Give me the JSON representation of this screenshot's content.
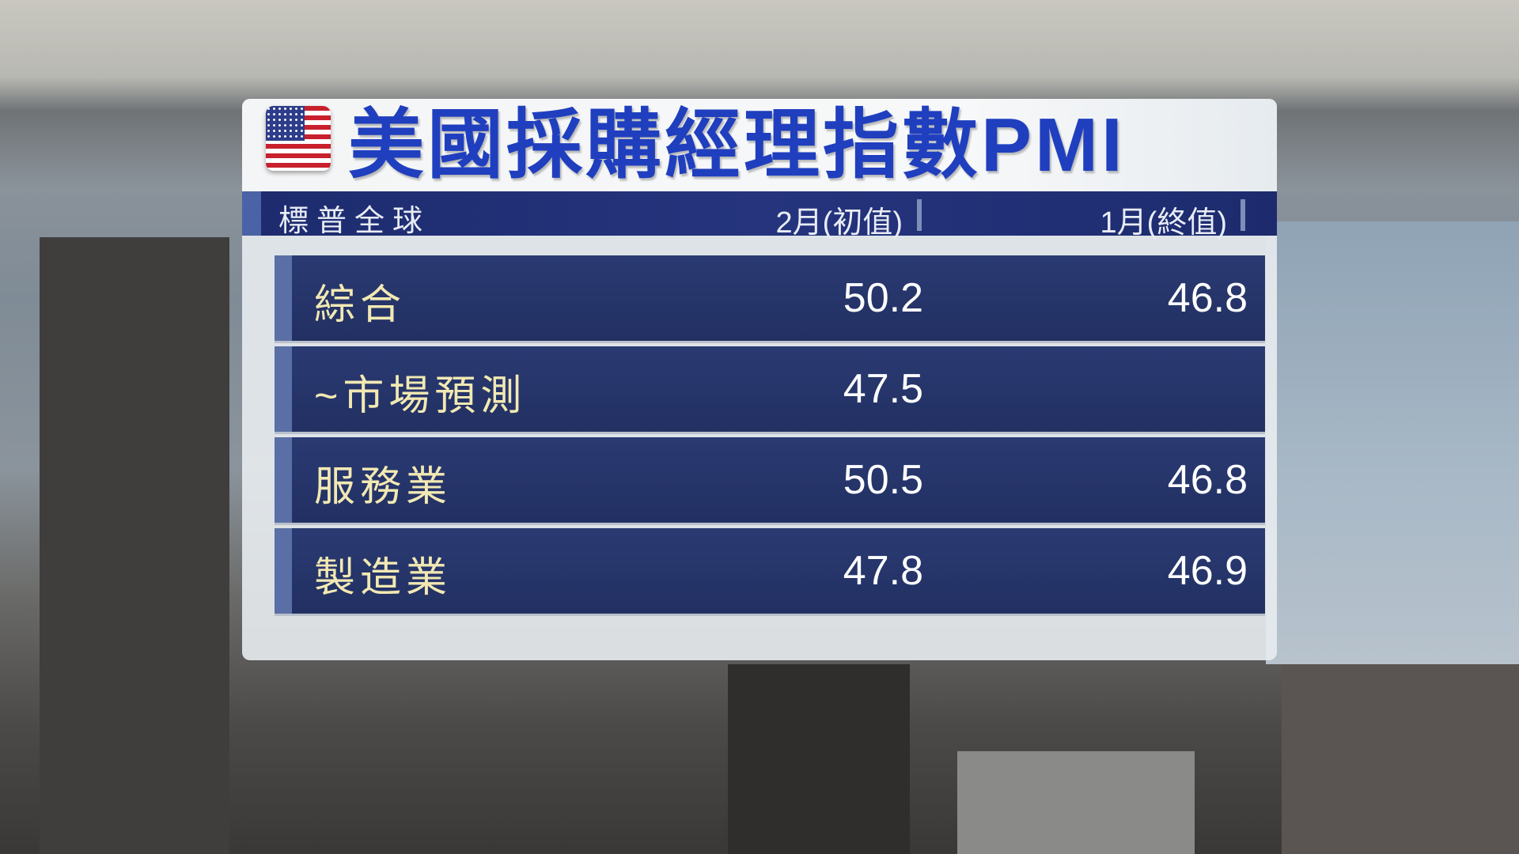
{
  "title": "美國採購經理指數PMI",
  "flag_icon": "us-flag-icon",
  "header": {
    "source": "標普全球",
    "col1": "2月(初值)",
    "col2": "1月(終值)"
  },
  "rows": [
    {
      "label": "綜合",
      "feb": "50.2",
      "jan": "46.8"
    },
    {
      "label": "~市場預測",
      "feb": "47.5",
      "jan": ""
    },
    {
      "label": "服務業",
      "feb": "50.5",
      "jan": "46.8"
    },
    {
      "label": "製造業",
      "feb": "47.8",
      "jan": "46.9"
    }
  ],
  "colors": {
    "title": "#1f3fbf",
    "header_bg": "#1d2b6e",
    "row_bg": "#2a3a72",
    "label": "#f2e9b3"
  }
}
